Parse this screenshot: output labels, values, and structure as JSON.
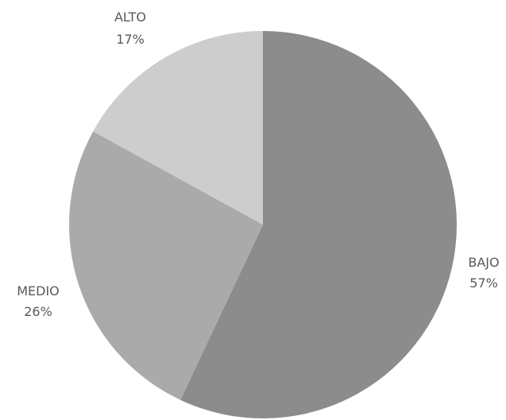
{
  "chart_data": {
    "type": "pie",
    "slices": [
      {
        "label": "BAJO",
        "value": 57,
        "value_label": "57%",
        "color": "#8c8c8c"
      },
      {
        "label": "MEDIO",
        "value": 26,
        "value_label": "26%",
        "color": "#aaaaaa"
      },
      {
        "label": "ALTO",
        "value": 17,
        "value_label": "17%",
        "color": "#cdcdcd"
      }
    ],
    "start_angle": "12 o'clock",
    "direction": "clockwise",
    "label_color": "#595959",
    "legend": "none"
  }
}
